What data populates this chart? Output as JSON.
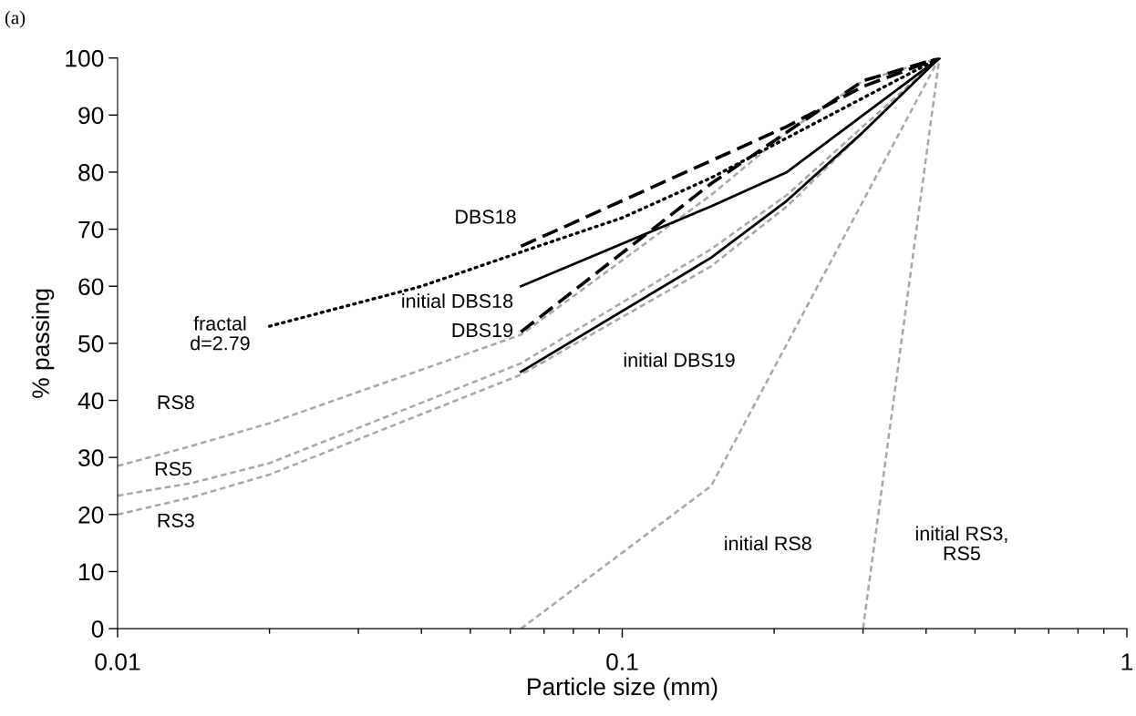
{
  "chart_data": {
    "type": "line",
    "xlabel": "Particle size (mm)",
    "ylabel": "% passing",
    "log": "x",
    "xlim": [
      0.01,
      1
    ],
    "xticks": [
      0.01,
      0.1,
      1
    ],
    "ylim": [
      0,
      100
    ],
    "yticks": [
      0,
      10,
      20,
      30,
      40,
      50,
      60,
      70,
      80,
      90,
      100
    ],
    "grid": false,
    "legend": false,
    "marker": "none",
    "series": [
      {
        "name": "RS8",
        "color": "#a6a6a6",
        "line_style": "dashed",
        "x": [
          0.01,
          0.014,
          0.02,
          0.063,
          0.15,
          0.212,
          0.3,
          0.425
        ],
        "values": [
          28.5,
          32,
          36,
          51.5,
          76,
          87,
          96,
          100
        ]
      },
      {
        "name": "RS5",
        "color": "#a6a6a6",
        "line_style": "dashed",
        "x": [
          0.01,
          0.014,
          0.02,
          0.063,
          0.15,
          0.212,
          0.3,
          0.425
        ],
        "values": [
          23.3,
          25.5,
          29,
          46.5,
          66.5,
          76,
          88,
          100
        ]
      },
      {
        "name": "RS3",
        "color": "#a6a6a6",
        "line_style": "dashed",
        "x": [
          0.01,
          0.014,
          0.02,
          0.063,
          0.15,
          0.212,
          0.3,
          0.425
        ],
        "values": [
          20,
          23,
          27,
          44.5,
          63.5,
          74,
          87,
          100
        ]
      },
      {
        "name": "initial RS8",
        "color": "#a6a6a6",
        "line_style": "dashed",
        "x": [
          0.063,
          0.15,
          0.425
        ],
        "values": [
          0,
          25,
          100
        ]
      },
      {
        "name": "initial RS3,\nRS5",
        "color": "#a6a6a6",
        "line_style": "dashed",
        "x": [
          0.3,
          0.425
        ],
        "values": [
          0,
          100
        ]
      },
      {
        "name": "initial DBS18",
        "color": "#000000",
        "line_style": "solid",
        "x": [
          0.063,
          0.15,
          0.212,
          0.3,
          0.425
        ],
        "values": [
          60,
          74,
          80,
          90,
          100
        ]
      },
      {
        "name": "initial DBS19",
        "color": "#000000",
        "line_style": "solid",
        "x": [
          0.063,
          0.15,
          0.212,
          0.3,
          0.425
        ],
        "values": [
          45,
          65,
          75,
          87,
          100
        ]
      },
      {
        "name": "DBS18",
        "color": "#000000",
        "line_style": "dashed",
        "x": [
          0.063,
          0.15,
          0.212,
          0.3,
          0.425
        ],
        "values": [
          67,
          82,
          88,
          95,
          100
        ]
      },
      {
        "name": "DBS19",
        "color": "#000000",
        "line_style": "dashed",
        "x": [
          0.063,
          0.15,
          0.212,
          0.3,
          0.425
        ],
        "values": [
          52,
          78,
          87,
          96,
          100
        ]
      },
      {
        "name": "fractal\nd=2.79",
        "color": "#000000",
        "line_style": "dotted",
        "x": [
          0.02,
          0.04,
          0.063,
          0.1,
          0.15,
          0.212,
          0.3,
          0.425
        ],
        "values": [
          53,
          60,
          66,
          72,
          79,
          86,
          93,
          100
        ]
      }
    ],
    "annotations": [
      "(a)"
    ]
  }
}
